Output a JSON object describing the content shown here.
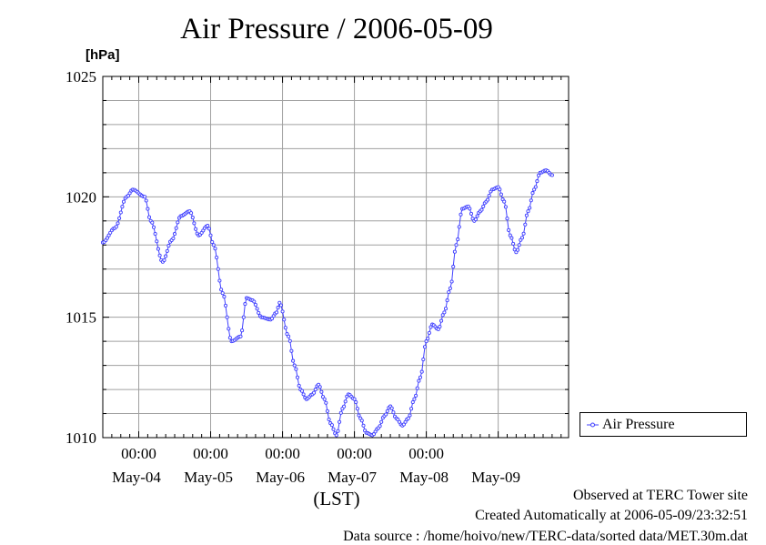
{
  "chart_data": {
    "type": "line",
    "title": "Air Pressure / 2006-05-09",
    "y_unit": "[hPa]",
    "xlabel": "(LST)",
    "ylim": [
      1010,
      1025
    ],
    "xlim": [
      "2006-05-03T12:00",
      "2006-05-09T23:30"
    ],
    "y_ticks": [
      "1010",
      "1015",
      "1020",
      "1025"
    ],
    "time_ticks": [
      "00:00",
      "00:00",
      "00:00",
      "00:00",
      "00:00"
    ],
    "date_labels": [
      "May-04",
      "May-05",
      "May-06",
      "May-07",
      "May-08",
      "May-09"
    ],
    "grid": true,
    "legend_position": "bottom-right",
    "series": [
      {
        "name": "Air Pressure",
        "color": "#4040ff",
        "points": [
          [
            "2006-05-03T12:00",
            1018.1
          ],
          [
            "2006-05-03T16:00",
            1018.7
          ],
          [
            "2006-05-03T20:00",
            1020.0
          ],
          [
            "2006-05-03T22:00",
            1020.3
          ],
          [
            "2006-05-04T02:00",
            1020.0
          ],
          [
            "2006-05-04T04:00",
            1019.0
          ],
          [
            "2006-05-04T08:00",
            1017.3
          ],
          [
            "2006-05-04T11:00",
            1018.2
          ],
          [
            "2006-05-04T14:00",
            1019.2
          ],
          [
            "2006-05-04T17:00",
            1019.4
          ],
          [
            "2006-05-04T20:00",
            1018.4
          ],
          [
            "2006-05-04T23:00",
            1018.8
          ],
          [
            "2006-05-05T01:00",
            1018.0
          ],
          [
            "2006-05-05T04:00",
            1016.0
          ],
          [
            "2006-05-05T07:00",
            1014.0
          ],
          [
            "2006-05-05T10:00",
            1014.2
          ],
          [
            "2006-05-05T12:00",
            1015.8
          ],
          [
            "2006-05-05T14:00",
            1015.7
          ],
          [
            "2006-05-05T17:00",
            1015.0
          ],
          [
            "2006-05-05T20:00",
            1014.9
          ],
          [
            "2006-05-05T22:00",
            1015.2
          ],
          [
            "2006-05-05T23:00",
            1015.6
          ],
          [
            "2006-05-06T02:00",
            1014.2
          ],
          [
            "2006-05-06T04:00",
            1013.0
          ],
          [
            "2006-05-06T06:00",
            1012.0
          ],
          [
            "2006-05-06T08:00",
            1011.6
          ],
          [
            "2006-05-06T10:00",
            1011.8
          ],
          [
            "2006-05-06T12:00",
            1012.2
          ],
          [
            "2006-05-06T14:00",
            1011.6
          ],
          [
            "2006-05-06T16:00",
            1010.6
          ],
          [
            "2006-05-06T18:00",
            1010.1
          ],
          [
            "2006-05-06T20:00",
            1011.2
          ],
          [
            "2006-05-06T22:00",
            1011.8
          ],
          [
            "2006-05-07T00:00",
            1011.6
          ],
          [
            "2006-05-07T02:00",
            1010.8
          ],
          [
            "2006-05-07T04:00",
            1010.2
          ],
          [
            "2006-05-07T06:00",
            1010.1
          ],
          [
            "2006-05-07T08:00",
            1010.4
          ],
          [
            "2006-05-07T10:00",
            1010.9
          ],
          [
            "2006-05-07T12:00",
            1011.3
          ],
          [
            "2006-05-07T14:00",
            1010.8
          ],
          [
            "2006-05-07T16:00",
            1010.5
          ],
          [
            "2006-05-07T18:00",
            1010.8
          ],
          [
            "2006-05-07T20:00",
            1011.6
          ],
          [
            "2006-05-07T22:00",
            1012.5
          ],
          [
            "2006-05-08T00:00",
            1014.0
          ],
          [
            "2006-05-08T02:00",
            1014.7
          ],
          [
            "2006-05-08T04:00",
            1014.5
          ],
          [
            "2006-05-08T06:00",
            1015.2
          ],
          [
            "2006-05-08T08:00",
            1016.2
          ],
          [
            "2006-05-08T10:00",
            1018.0
          ],
          [
            "2006-05-08T12:00",
            1019.5
          ],
          [
            "2006-05-08T14:00",
            1019.6
          ],
          [
            "2006-05-08T16:00",
            1019.0
          ],
          [
            "2006-05-08T18:00",
            1019.4
          ],
          [
            "2006-05-08T20:00",
            1019.8
          ],
          [
            "2006-05-08T22:00",
            1020.3
          ],
          [
            "2006-05-09T00:00",
            1020.4
          ],
          [
            "2006-05-09T02:00",
            1019.8
          ],
          [
            "2006-05-09T04:00",
            1018.4
          ],
          [
            "2006-05-09T06:00",
            1017.7
          ],
          [
            "2006-05-09T08:00",
            1018.3
          ],
          [
            "2006-05-09T10:00",
            1019.4
          ],
          [
            "2006-05-09T12:00",
            1020.3
          ],
          [
            "2006-05-09T14:00",
            1021.0
          ],
          [
            "2006-05-09T16:00",
            1021.1
          ],
          [
            "2006-05-09T18:00",
            1020.9
          ]
        ]
      }
    ]
  },
  "footer": {
    "observed": "Observed at TERC Tower site",
    "created": "Created Automatically at 2006-05-09/23:32:51",
    "source": "Data source : /home/hoivo/new/TERC-data/sorted  data/MET.30m.dat"
  }
}
